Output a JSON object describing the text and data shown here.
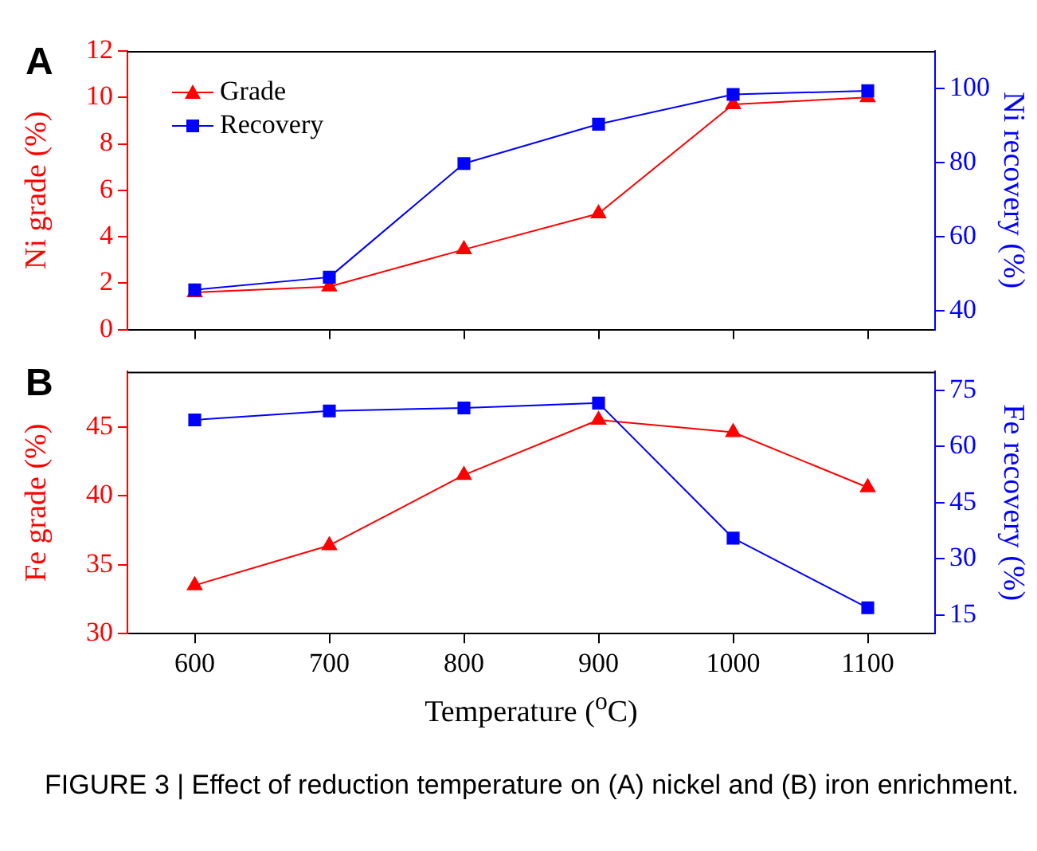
{
  "chart_data": [
    {
      "type": "line",
      "title": "A",
      "x": [
        600,
        700,
        800,
        900,
        1000,
        1100
      ],
      "xlim": [
        550,
        1150
      ],
      "xticks": [
        600,
        700,
        800,
        900,
        1000,
        1100
      ],
      "ylabel": "Ni grade (%)",
      "y2label": "Ni recovery (%)",
      "ylim": [
        0,
        12
      ],
      "yticks": [
        0,
        2,
        4,
        6,
        8,
        10,
        12
      ],
      "y2lim": [
        35,
        110
      ],
      "y2ticks": [
        40,
        60,
        80,
        100
      ],
      "tick_labels": "y",
      "grid": false,
      "legend": "top left",
      "line_style": "solid",
      "series": [
        {
          "name": "Grade",
          "color": "#ff0000",
          "marker": "triangle",
          "values": [
            1.6,
            1.85,
            3.45,
            5.0,
            9.7,
            10.0
          ]
        },
        {
          "name": "Recovery",
          "color": "#0000ff",
          "marker": "square",
          "axis": "y2",
          "values": [
            45.7,
            49.1,
            79.7,
            90.3,
            98.3,
            99.3
          ]
        }
      ]
    },
    {
      "type": "line",
      "title": "B",
      "x": [
        600,
        700,
        800,
        900,
        1000,
        1100
      ],
      "xlim": [
        550,
        1150
      ],
      "xticks": [
        600,
        700,
        800,
        900,
        1000,
        1100
      ],
      "xlabel": "Temperature ($^{o}$C)",
      "ylabel": "Fe grade (%)",
      "y2label": "Fe recovery (%)",
      "ylim": [
        30,
        49
      ],
      "yticks": [
        30,
        35,
        40,
        45
      ],
      "y2lim": [
        10,
        80
      ],
      "y2ticks": [
        15,
        30,
        45,
        60,
        75
      ],
      "grid": false,
      "line_style": "solid",
      "annotations": [
        "FIGURE 3 | Effect of reduction temperature on (A) nickel and (B) iron enrichment."
      ],
      "series": [
        {
          "color": "#ff0000",
          "marker": "triangle",
          "values": [
            33.5,
            36.4,
            41.5,
            45.5,
            44.6,
            40.6
          ]
        },
        {
          "color": "#0000ff",
          "marker": "square",
          "axis": "y2",
          "values": [
            67.1,
            69.5,
            70.3,
            71.6,
            35.5,
            16.9
          ]
        }
      ]
    }
  ]
}
